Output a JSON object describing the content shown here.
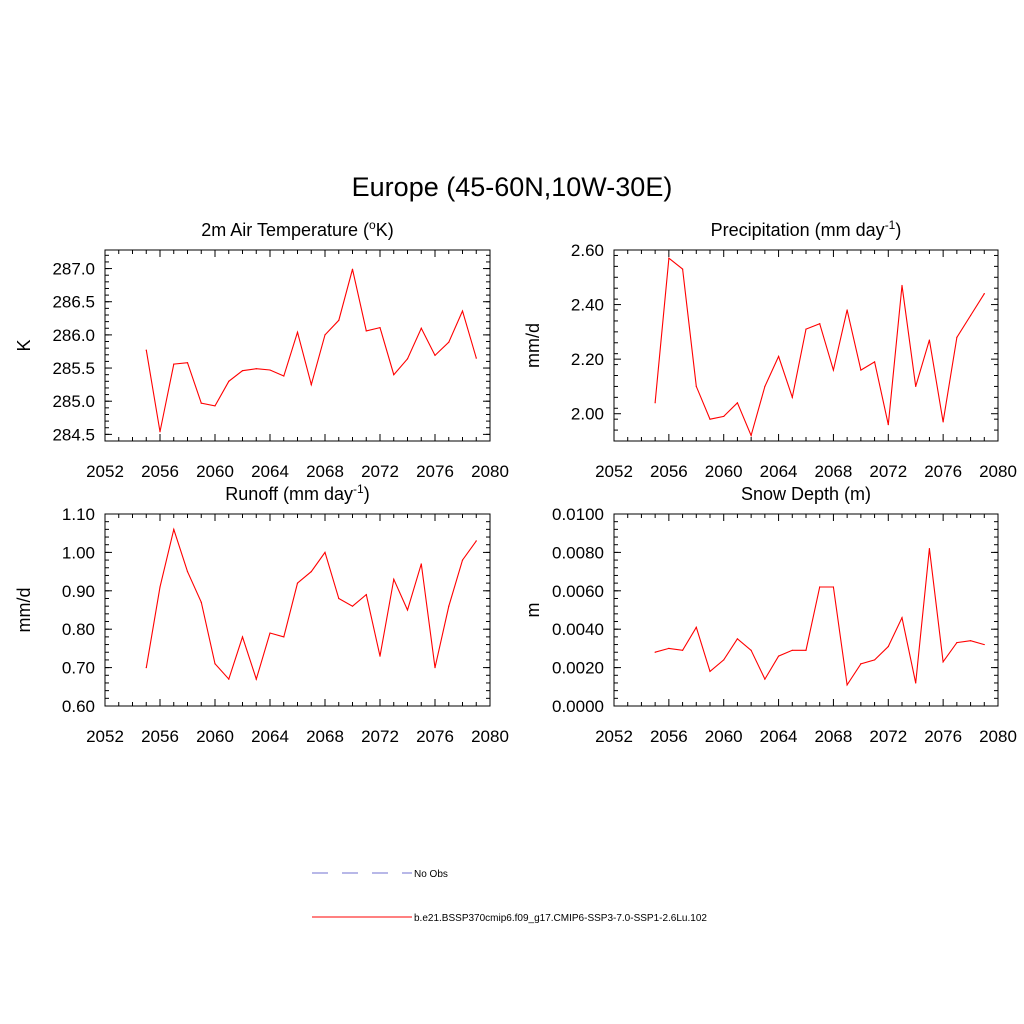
{
  "title": "Europe (45-60N,10W-30E)",
  "colors": {
    "series": "#ff0000",
    "obs": "#a0a0e0",
    "axis": "#000000"
  },
  "legend": {
    "obs_label": "No Obs",
    "series_label": "b.e21.BSSP370cmip6.f09_g17.CMIP6-SSP3-7.0-SSP1-2.6Lu.102"
  },
  "chart_data": [
    {
      "type": "line",
      "title": {
        "main": "2m Air Temperature (",
        "sup": "o",
        "tail": "K)"
      },
      "ylabel": "K",
      "xlim": [
        2052,
        2080
      ],
      "ylim": [
        284.4,
        287.28
      ],
      "xticks": [
        2052,
        2056,
        2060,
        2064,
        2068,
        2072,
        2076,
        2080
      ],
      "yticks": [
        284.5,
        285.0,
        285.5,
        286.0,
        286.5,
        287.0
      ],
      "ytick_labels": [
        "284.5",
        "285.0",
        "285.5",
        "286.0",
        "286.5",
        "287.0"
      ],
      "x": [
        2055,
        2056,
        2057,
        2058,
        2059,
        2060,
        2061,
        2062,
        2063,
        2064,
        2065,
        2066,
        2067,
        2068,
        2069,
        2070,
        2071,
        2072,
        2073,
        2074,
        2075,
        2076,
        2077,
        2078,
        2079
      ],
      "values": [
        285.77,
        284.54,
        285.56,
        285.58,
        284.97,
        284.93,
        285.3,
        285.46,
        285.49,
        285.47,
        285.38,
        286.04,
        285.25,
        286.0,
        286.22,
        286.99,
        286.06,
        286.11,
        285.4,
        285.64,
        286.1,
        285.69,
        285.89,
        286.36,
        285.65
      ]
    },
    {
      "type": "line",
      "title": {
        "main": "Precipitation (mm day",
        "sup": "-1",
        "tail": ")"
      },
      "ylabel": "mm/d",
      "xlim": [
        2052,
        2080
      ],
      "ylim": [
        1.9,
        2.6
      ],
      "xticks": [
        2052,
        2056,
        2060,
        2064,
        2068,
        2072,
        2076,
        2080
      ],
      "yticks": [
        2.0,
        2.2,
        2.4,
        2.6
      ],
      "ytick_labels": [
        "2.00",
        "2.20",
        "2.40",
        "2.60"
      ],
      "x": [
        2055,
        2056,
        2057,
        2058,
        2059,
        2060,
        2061,
        2062,
        2063,
        2064,
        2065,
        2066,
        2067,
        2068,
        2069,
        2070,
        2071,
        2072,
        2073,
        2074,
        2075,
        2076,
        2077,
        2078,
        2079
      ],
      "values": [
        2.04,
        2.57,
        2.53,
        2.1,
        1.98,
        1.99,
        2.04,
        1.92,
        2.1,
        2.21,
        2.06,
        2.31,
        2.33,
        2.16,
        2.38,
        2.16,
        2.19,
        1.96,
        2.47,
        2.1,
        2.27,
        1.97,
        2.28,
        2.36,
        2.44
      ]
    },
    {
      "type": "line",
      "title": {
        "main": "Runoff (mm day",
        "sup": "-1",
        "tail": ")"
      },
      "ylabel": "mm/d",
      "xlim": [
        2052,
        2080
      ],
      "ylim": [
        0.6,
        1.1
      ],
      "xticks": [
        2052,
        2056,
        2060,
        2064,
        2068,
        2072,
        2076,
        2080
      ],
      "yticks": [
        0.6,
        0.7,
        0.8,
        0.9,
        1.0,
        1.1
      ],
      "ytick_labels": [
        "0.60",
        "0.70",
        "0.80",
        "0.90",
        "1.00",
        "1.10"
      ],
      "x": [
        2055,
        2056,
        2057,
        2058,
        2059,
        2060,
        2061,
        2062,
        2063,
        2064,
        2065,
        2066,
        2067,
        2068,
        2069,
        2070,
        2071,
        2072,
        2073,
        2074,
        2075,
        2076,
        2077,
        2078,
        2079
      ],
      "values": [
        0.7,
        0.91,
        1.06,
        0.95,
        0.87,
        0.71,
        0.67,
        0.78,
        0.67,
        0.79,
        0.78,
        0.92,
        0.95,
        1.0,
        0.88,
        0.86,
        0.89,
        0.73,
        0.93,
        0.85,
        0.97,
        0.7,
        0.86,
        0.98,
        1.03
      ]
    },
    {
      "type": "line",
      "title": {
        "main": "Snow Depth (m)",
        "sup": "",
        "tail": ""
      },
      "ylabel": "m",
      "xlim": [
        2052,
        2080
      ],
      "ylim": [
        0.0,
        0.01
      ],
      "xticks": [
        2052,
        2056,
        2060,
        2064,
        2068,
        2072,
        2076,
        2080
      ],
      "yticks": [
        0.0,
        0.002,
        0.004,
        0.006,
        0.008,
        0.01
      ],
      "ytick_labels": [
        "0.0000",
        "0.0020",
        "0.0040",
        "0.0060",
        "0.0080",
        "0.0100"
      ],
      "x": [
        2055,
        2056,
        2057,
        2058,
        2059,
        2060,
        2061,
        2062,
        2063,
        2064,
        2065,
        2066,
        2067,
        2068,
        2069,
        2070,
        2071,
        2072,
        2073,
        2074,
        2075,
        2076,
        2077,
        2078,
        2079
      ],
      "values": [
        0.0028,
        0.003,
        0.0029,
        0.0041,
        0.0018,
        0.0024,
        0.0035,
        0.0029,
        0.0014,
        0.0026,
        0.0029,
        0.0029,
        0.0062,
        0.0062,
        0.0011,
        0.0022,
        0.0024,
        0.0031,
        0.0046,
        0.0012,
        0.0082,
        0.0023,
        0.0033,
        0.0034,
        0.0032
      ]
    }
  ]
}
